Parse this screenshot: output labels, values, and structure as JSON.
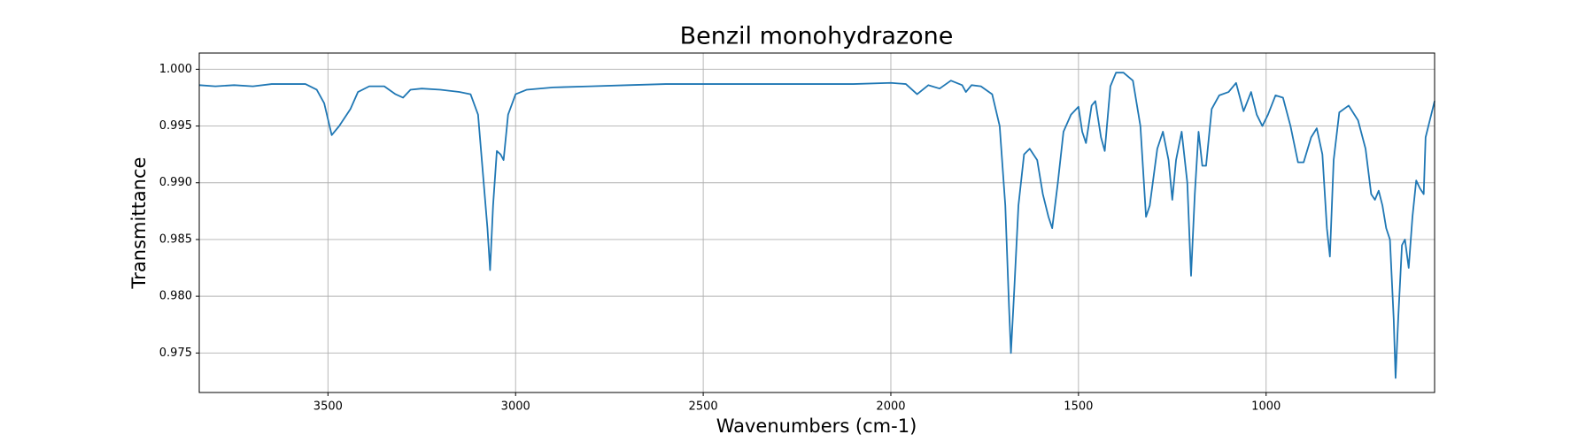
{
  "chart_data": {
    "type": "line",
    "title": "Benzil monohydrazone",
    "xlabel": "Wavenumbers (cm-1)",
    "ylabel": "Transmittance",
    "x": [
      3843,
      3800,
      3750,
      3700,
      3650,
      3600,
      3560,
      3530,
      3510,
      3490,
      3470,
      3440,
      3420,
      3390,
      3350,
      3320,
      3300,
      3280,
      3250,
      3200,
      3150,
      3120,
      3100,
      3085,
      3075,
      3068,
      3060,
      3050,
      3040,
      3032,
      3020,
      3000,
      2970,
      2900,
      2800,
      2700,
      2600,
      2500,
      2400,
      2300,
      2200,
      2100,
      2000,
      1960,
      1930,
      1900,
      1870,
      1840,
      1810,
      1800,
      1785,
      1760,
      1730,
      1710,
      1695,
      1685,
      1680,
      1672,
      1660,
      1645,
      1630,
      1610,
      1595,
      1580,
      1570,
      1555,
      1540,
      1520,
      1500,
      1490,
      1480,
      1465,
      1455,
      1440,
      1430,
      1415,
      1400,
      1380,
      1355,
      1335,
      1320,
      1310,
      1290,
      1275,
      1260,
      1250,
      1240,
      1225,
      1210,
      1200,
      1190,
      1180,
      1170,
      1160,
      1145,
      1125,
      1100,
      1080,
      1060,
      1040,
      1025,
      1010,
      995,
      975,
      955,
      935,
      915,
      900,
      880,
      865,
      850,
      838,
      830,
      820,
      805,
      780,
      755,
      735,
      720,
      710,
      700,
      690,
      680,
      670,
      660,
      655,
      648,
      638,
      630,
      620,
      610,
      600,
      590,
      580,
      575,
      560,
      551
    ],
    "values": [
      0.9986,
      0.9985,
      0.9986,
      0.9985,
      0.9987,
      0.9987,
      0.9987,
      0.9982,
      0.997,
      0.9942,
      0.995,
      0.9965,
      0.998,
      0.9985,
      0.9985,
      0.9978,
      0.9975,
      0.9982,
      0.9983,
      0.9982,
      0.998,
      0.9978,
      0.996,
      0.99,
      0.986,
      0.9823,
      0.988,
      0.9928,
      0.9925,
      0.992,
      0.996,
      0.9978,
      0.9982,
      0.9984,
      0.9985,
      0.9986,
      0.9987,
      0.9987,
      0.9987,
      0.9987,
      0.9987,
      0.9987,
      0.9988,
      0.9987,
      0.9978,
      0.9986,
      0.9983,
      0.999,
      0.9986,
      0.998,
      0.9986,
      0.9985,
      0.9978,
      0.995,
      0.988,
      0.979,
      0.975,
      0.98,
      0.988,
      0.9925,
      0.993,
      0.992,
      0.989,
      0.987,
      0.986,
      0.99,
      0.9945,
      0.996,
      0.9967,
      0.9945,
      0.9935,
      0.9968,
      0.9972,
      0.994,
      0.9928,
      0.9985,
      0.9997,
      0.9997,
      0.999,
      0.995,
      0.987,
      0.988,
      0.993,
      0.9945,
      0.992,
      0.9885,
      0.992,
      0.9945,
      0.99,
      0.9818,
      0.989,
      0.9945,
      0.9915,
      0.9915,
      0.9965,
      0.9977,
      0.998,
      0.9988,
      0.9963,
      0.998,
      0.996,
      0.995,
      0.996,
      0.9977,
      0.9975,
      0.995,
      0.9918,
      0.9918,
      0.994,
      0.9948,
      0.9925,
      0.986,
      0.9835,
      0.992,
      0.9962,
      0.9968,
      0.9955,
      0.993,
      0.989,
      0.9885,
      0.9893,
      0.988,
      0.986,
      0.985,
      0.978,
      0.9728,
      0.978,
      0.9845,
      0.985,
      0.9825,
      0.987,
      0.9902,
      0.9895,
      0.989,
      0.994,
      0.996,
      0.9972
    ],
    "color": "#1f77b4",
    "xlim": [
      3843,
      551
    ],
    "ylim": [
      0.97152,
      1.00143
    ],
    "xticks": [
      3500,
      3000,
      2500,
      2000,
      1500,
      1000
    ],
    "yticks": [
      0.975,
      {
        "value": 0.98,
        "label": "0.980"
      },
      0.985,
      {
        "value": 0.99,
        "label": "0.990"
      },
      0.995,
      {
        "value": 1,
        "label": "1.000"
      }
    ],
    "grid": true
  }
}
